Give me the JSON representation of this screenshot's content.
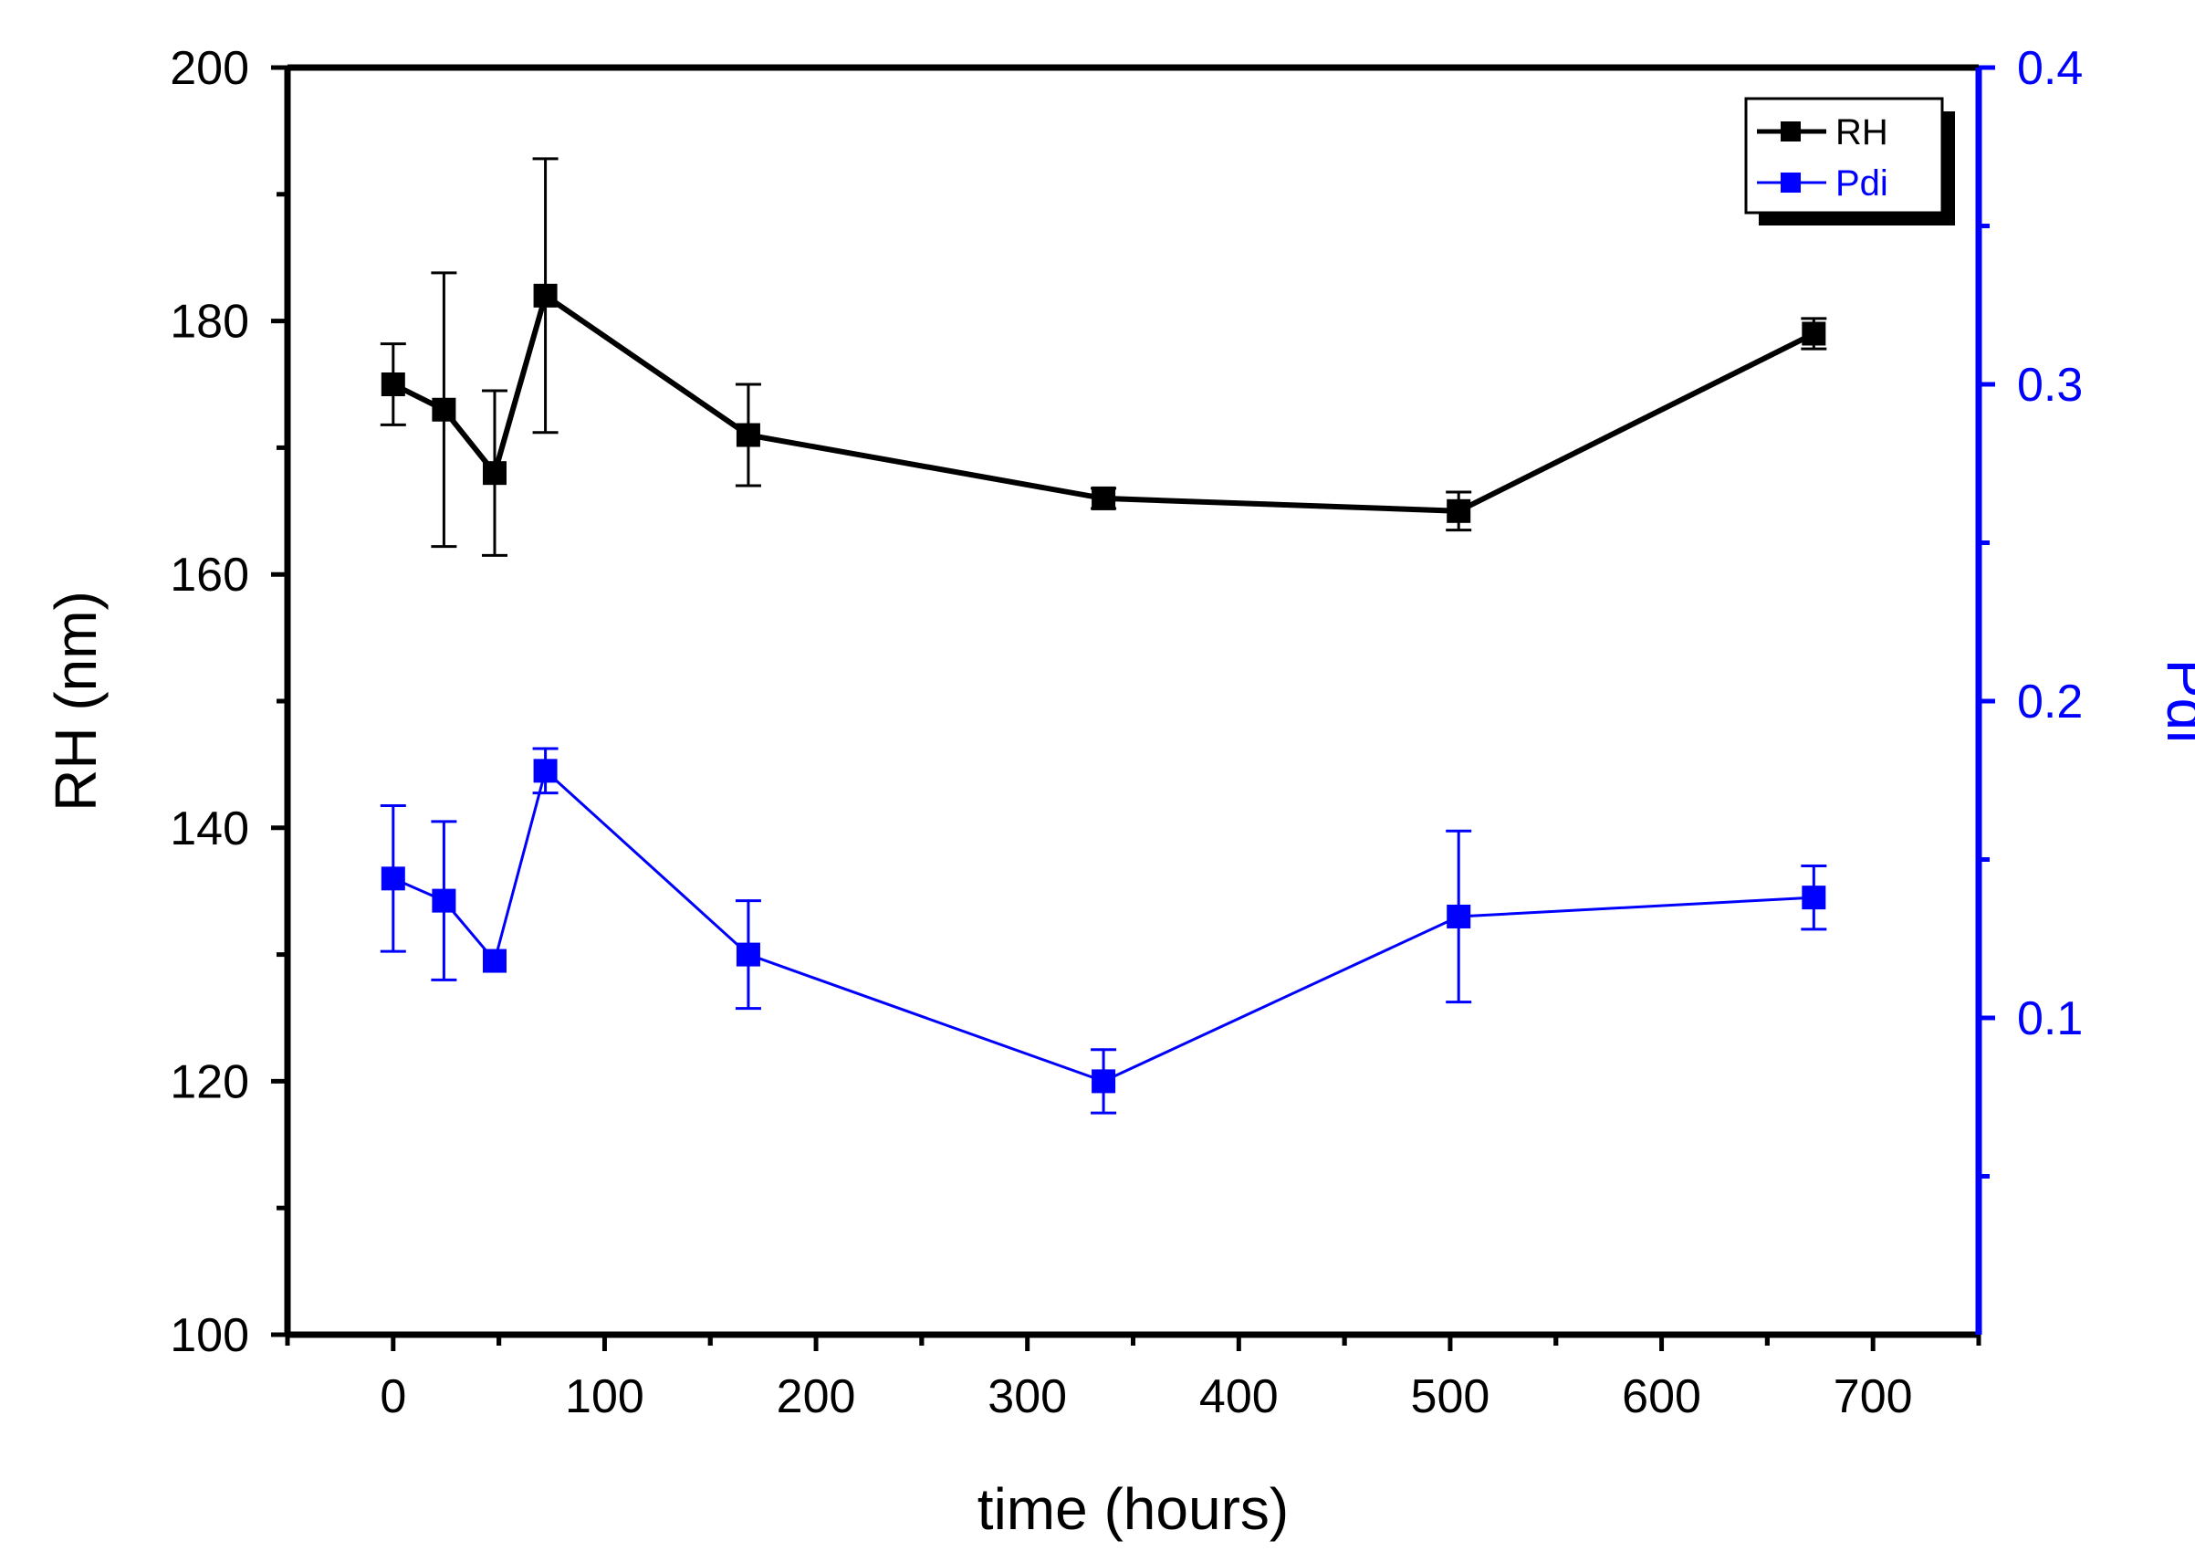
{
  "chart_data": {
    "type": "line",
    "title": "",
    "xlabel": "time (hours)",
    "ylabel": "RH (nm)",
    "y2label": "Pdi",
    "xlim": [
      -50,
      750
    ],
    "ylim": [
      100,
      200
    ],
    "y2lim": [
      0.0,
      0.4
    ],
    "xticks": [
      0,
      100,
      200,
      300,
      400,
      500,
      600,
      700
    ],
    "yticks": [
      100,
      120,
      140,
      160,
      180,
      200
    ],
    "y2ticks": [
      0.1,
      0.2,
      0.3,
      0.4
    ],
    "colors": {
      "RH": "#000000",
      "Pdi": "#0000ff"
    },
    "legend_position": "top-right",
    "series": [
      {
        "name": "RH",
        "axis": "left",
        "x": [
          0,
          24,
          48,
          72,
          168,
          336,
          504,
          672
        ],
        "values": [
          175.0,
          173.0,
          168.0,
          182.0,
          171.0,
          166.0,
          165.0,
          179.0
        ],
        "errors": [
          3.2,
          10.8,
          6.5,
          10.8,
          4.0,
          0.8,
          1.5,
          1.2
        ]
      },
      {
        "name": "Pdi",
        "axis": "right",
        "x": [
          0,
          24,
          48,
          72,
          168,
          336,
          504,
          672
        ],
        "values": [
          0.144,
          0.137,
          0.118,
          0.178,
          0.12,
          0.08,
          0.132,
          0.138
        ],
        "errors": [
          0.023,
          0.025,
          0.0,
          0.007,
          0.017,
          0.01,
          0.027,
          0.01
        ]
      }
    ]
  }
}
